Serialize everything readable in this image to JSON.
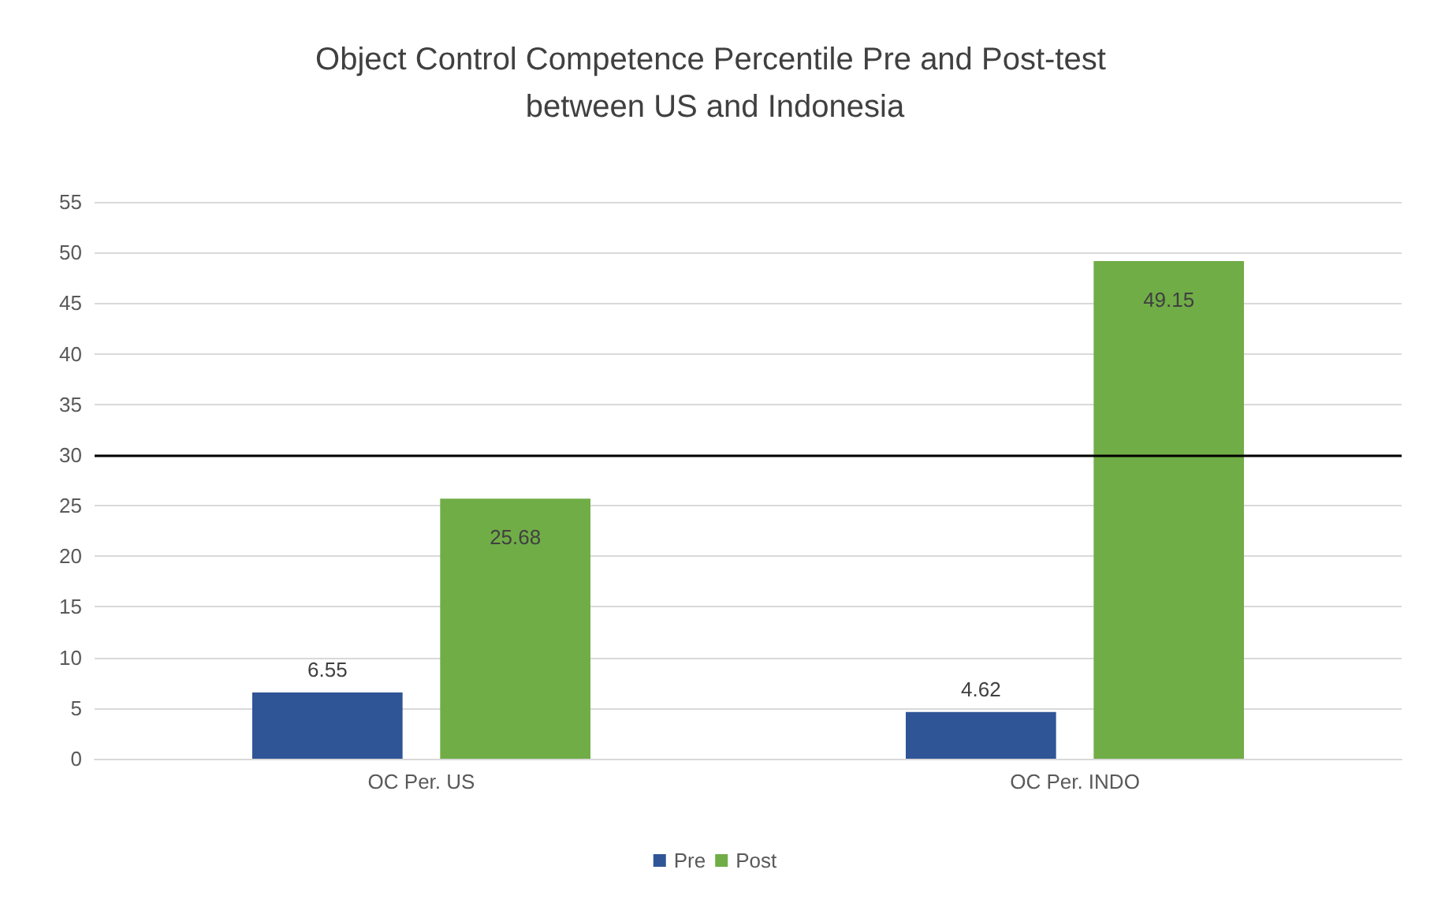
{
  "chart_data": {
    "type": "bar",
    "title": "Object Control Competence Percentile Pre and Post-test between US and Indonesia",
    "categories": [
      "OC Per. US",
      "OC Per. INDO"
    ],
    "series": [
      {
        "name": "Pre",
        "color": "#2f5597",
        "values": [
          6.55,
          4.62
        ]
      },
      {
        "name": "Post",
        "color": "#70ad47",
        "values": [
          25.68,
          49.15
        ]
      }
    ],
    "ylim": [
      0,
      55
    ],
    "yticks": [
      0,
      5,
      10,
      15,
      20,
      25,
      30,
      35,
      40,
      45,
      50,
      55
    ],
    "grid": "y",
    "legend": "bottom",
    "data_labels": true,
    "ref_lines": [
      {
        "axis": "y",
        "value": 30,
        "color": "#000000"
      }
    ]
  }
}
